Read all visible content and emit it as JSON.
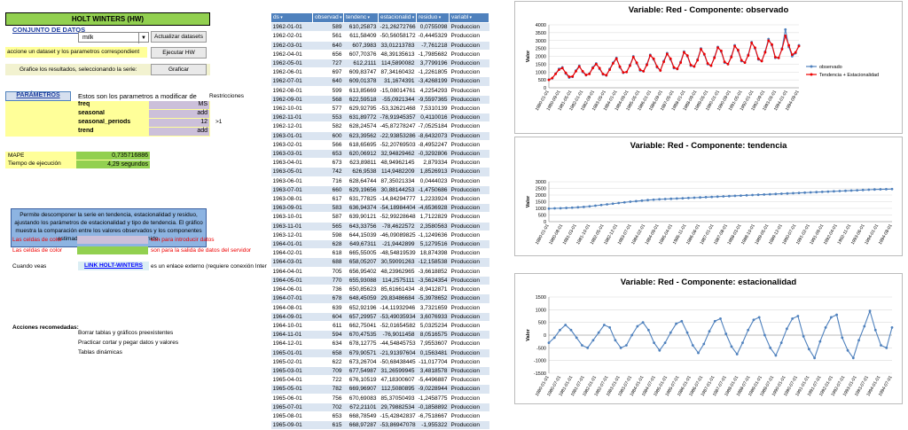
{
  "left": {
    "title": "HOLT WINTERS (HW)",
    "dataset_header": "CONJUNTO DE DATOS",
    "dataset_value": "milk",
    "update_btn": "Actualizar datasets",
    "select_instr": "accione un dataset y los parametros correspondient",
    "run_btn": "Ejecutar HW",
    "graph_instr": "Grafice los resultados, seleccionando la serie:",
    "graph_btn": "Graficar",
    "params_header": "PARÁMETROS",
    "params_desc": "Estos son los parametros a modificar de",
    "restrictions": "Restricciones",
    "params": [
      {
        "name": "freq",
        "value": "MS"
      },
      {
        "name": "seasonal",
        "value": "add"
      },
      {
        "name": "seasonal_periods",
        "value": "12"
      },
      {
        "name": "trend",
        "value": "add"
      }
    ],
    "restriction_note": ">1",
    "mape_label": "MAPE",
    "mape_value": "0,735716886",
    "time_label": "Tiempo de ejecución",
    "time_value": "4,29 segundos",
    "description": "Permite descomponer la serie en tendencia, estacionalidad y residuo, ajustando los parámetros de estacionalidad y tipo de tendencia. El gráfico muestra la comparación entre los valores observados y los componentes estimados, junto con el MAPE obtenido.",
    "color_cells_1": "Las celdas de color",
    "color_note_1": "son para introducir datos",
    "color_cells_2": "Las celdas de color",
    "color_note_2": "son para la salida de datos del servidor",
    "when_see": "Cuando veas",
    "link_text": "LINK HOLT-WINTERS",
    "link_note": "es un enlace externo (requiere conexión Inter",
    "actions_header": "Acciones recomedadas:",
    "actions": [
      "Borrar tablas y gráficos preexistentes",
      "Practicar cortar y pegar datos y valores",
      "Tablas dinámicas"
    ]
  },
  "table": {
    "headers": [
      "ds",
      "observad",
      "tendenc",
      "estacionalid",
      "residuo",
      "variabl"
    ],
    "rows": [
      [
        "1962-01-01",
        "589",
        "610,25873",
        "-21,26272766",
        "0,0755098",
        "Produccion"
      ],
      [
        "1962-02-01",
        "561",
        "611,58409",
        "-50,56058172",
        "-0,4445329",
        "Produccion"
      ],
      [
        "1962-03-01",
        "640",
        "607,3983",
        "33,01213783",
        "-7,761218",
        "Produccion"
      ],
      [
        "1962-04-01",
        "656",
        "607,70376",
        "48,39135613",
        "-1,7985682",
        "Produccion"
      ],
      [
        "1962-05-01",
        "727",
        "612,2111",
        "114,5890082",
        "3,7799196",
        "Produccion"
      ],
      [
        "1962-06-01",
        "697",
        "609,83747",
        "87,34160432",
        "-1,2261805",
        "Produccion"
      ],
      [
        "1962-07-01",
        "640",
        "609,01378",
        "31,1674391",
        "-3,4268199",
        "Produccion"
      ],
      [
        "1962-08-01",
        "599",
        "613,85669",
        "-15,08014761",
        "4,2254293",
        "Produccion"
      ],
      [
        "1962-09-01",
        "568",
        "622,59518",
        "-55,0921344",
        "-9,5597365",
        "Produccion"
      ],
      [
        "1962-10-01",
        "577",
        "629,92795",
        "-53,32621468",
        "7,5310139",
        "Produccion"
      ],
      [
        "1962-11-01",
        "553",
        "631,89772",
        "-78,91945357",
        "0,4110016",
        "Produccion"
      ],
      [
        "1962-12-01",
        "582",
        "628,24574",
        "-45,87278247",
        "-7,0525184",
        "Produccion"
      ],
      [
        "1963-01-01",
        "600",
        "623,39562",
        "-22,93853286",
        "-8,6432073",
        "Produccion"
      ],
      [
        "1963-02-01",
        "566",
        "618,65695",
        "-52,20769503",
        "-8,4952247",
        "Produccion"
      ],
      [
        "1963-03-01",
        "653",
        "620,06912",
        "32,94829462",
        "-0,3292806",
        "Produccion"
      ],
      [
        "1963-04-01",
        "673",
        "623,89811",
        "48,94962145",
        "2,879334",
        "Produccion"
      ],
      [
        "1963-05-01",
        "742",
        "626,9538",
        "114,9482209",
        "1,8526913",
        "Produccion"
      ],
      [
        "1963-06-01",
        "716",
        "628,64744",
        "87,35021334",
        "0,0444023",
        "Produccion"
      ],
      [
        "1963-07-01",
        "660",
        "629,19656",
        "30,88144253",
        "-1,4750686",
        "Produccion"
      ],
      [
        "1963-08-01",
        "617",
        "631,77825",
        "-14,84294777",
        "1,2233924",
        "Produccion"
      ],
      [
        "1963-09-01",
        "583",
        "636,94374",
        "-54,18984404",
        "-4,6536928",
        "Produccion"
      ],
      [
        "1963-10-01",
        "587",
        "639,90121",
        "-52,99228648",
        "1,7122829",
        "Produccion"
      ],
      [
        "1963-11-01",
        "565",
        "643,33756",
        "-78,4622572",
        "2,3580563",
        "Produccion"
      ],
      [
        "1963-12-01",
        "598",
        "644,15039",
        "-46,09089825",
        "-1,1249636",
        "Produccion"
      ],
      [
        "1964-01-01",
        "628",
        "649,67311",
        "-21,9442899",
        "5,1279516",
        "Produccion"
      ],
      [
        "1964-02-01",
        "618",
        "665,55005",
        "-48,54819539",
        "18,874398",
        "Produccion"
      ],
      [
        "1964-03-01",
        "688",
        "658,05207",
        "30,59091263",
        "-12,158538",
        "Produccion"
      ],
      [
        "1964-04-01",
        "705",
        "656,95402",
        "48,23962965",
        "-3,6618852",
        "Produccion"
      ],
      [
        "1964-05-01",
        "770",
        "655,93088",
        "114,2575111",
        "-3,5624354",
        "Produccion"
      ],
      [
        "1964-06-01",
        "736",
        "650,85623",
        "85,61661434",
        "-8,9412871",
        "Produccion"
      ],
      [
        "1964-07-01",
        "678",
        "648,45059",
        "29,83486684",
        "-5,3978652",
        "Produccion"
      ],
      [
        "1964-08-01",
        "639",
        "652,92196",
        "-14,11932946",
        "3,7321659",
        "Produccion"
      ],
      [
        "1964-09-01",
        "604",
        "657,29957",
        "-53,49035934",
        "3,6076933",
        "Produccion"
      ],
      [
        "1964-10-01",
        "611",
        "662,75041",
        "-52,01654582",
        "5,0325234",
        "Produccion"
      ],
      [
        "1964-11-01",
        "594",
        "670,47535",
        "-76,9011458",
        "8,0516575",
        "Produccion"
      ],
      [
        "1964-12-01",
        "634",
        "678,12775",
        "-44,54845753",
        "7,9553607",
        "Produccion"
      ],
      [
        "1965-01-01",
        "658",
        "679,90571",
        "-21,91397604",
        "0,1563481",
        "Produccion"
      ],
      [
        "1965-02-01",
        "622",
        "673,26704",
        "-50,68438445",
        "-11,017704",
        "Produccion"
      ],
      [
        "1965-03-01",
        "709",
        "677,54987",
        "31,26599945",
        "3,4818578",
        "Produccion"
      ],
      [
        "1965-04-01",
        "722",
        "676,10519",
        "47,18300607",
        "-5,4496887",
        "Produccion"
      ],
      [
        "1965-05-01",
        "782",
        "669,96907",
        "112,5080895",
        "-9,0228944",
        "Produccion"
      ],
      [
        "1965-06-01",
        "756",
        "670,69083",
        "85,37050493",
        "-1,2458775",
        "Produccion"
      ],
      [
        "1965-07-01",
        "702",
        "672,21101",
        "29,79882534",
        "-0,1858892",
        "Produccion"
      ],
      [
        "1965-08-01",
        "653",
        "668,78549",
        "-15,42842837",
        "-6,7518667",
        "Produccion"
      ],
      [
        "1965-09-01",
        "615",
        "668,97287",
        "-53,86947078",
        "-1,955322",
        "Produccion"
      ]
    ]
  },
  "chart_data": [
    {
      "type": "line",
      "title": "Variable: Red - Componente: observado",
      "ylabel": "Valor",
      "ylim": [
        0,
        4000
      ],
      "yticks": [
        "0",
        "500",
        "1000",
        "1500",
        "2000",
        "2500",
        "3000",
        "3500",
        "4000"
      ],
      "xticks": [
        "1980-01-01",
        "1980-09-01",
        "1981-05-01",
        "1982-01-01",
        "1982-09-01",
        "1983-05-01",
        "1984-01-01",
        "1984-09-01",
        "1985-05-01",
        "1986-01-01",
        "1986-09-01",
        "1987-05-01",
        "1988-01-01",
        "1988-09-01",
        "1989-05-01",
        "1990-01-01",
        "1990-09-01",
        "1991-05-01",
        "1992-01-01",
        "1992-09-01",
        "1993-05-01",
        "1994-01-01",
        "1994-09-01"
      ],
      "legend": "right",
      "series": [
        {
          "name": "observado",
          "color": "#4f81bd",
          "values": [
            520,
            600,
            900,
            1200,
            1300,
            900,
            650,
            700,
            1100,
            1400,
            1000,
            800,
            900,
            1300,
            1550,
            1200,
            850,
            780,
            1200,
            1600,
            1900,
            1300,
            950,
            1000,
            1450,
            2000,
            1550,
            1100,
            1050,
            1500,
            2100,
            1800,
            1300,
            1100,
            1700,
            2200,
            1800,
            1250,
            1200,
            1650,
            2300,
            2000,
            1400,
            1350,
            1800,
            2500,
            2100,
            1500,
            1400,
            1950,
            2600,
            2300,
            1600,
            1500,
            2000,
            2700,
            2350,
            1700,
            1600,
            2100,
            2900,
            2500,
            1800,
            1700,
            2300,
            3100,
            2700,
            1900,
            1900,
            2500,
            3700,
            2600,
            2000,
            2200,
            2700
          ]
        },
        {
          "name": "Tendencia + Estacionalidad",
          "color": "#e00",
          "values": [
            500,
            620,
            880,
            1150,
            1250,
            950,
            700,
            720,
            1050,
            1350,
            1050,
            820,
            880,
            1250,
            1500,
            1250,
            880,
            800,
            1150,
            1550,
            1850,
            1350,
            980,
            1000,
            1400,
            1950,
            1600,
            1150,
            1050,
            1450,
            2050,
            1850,
            1350,
            1100,
            1650,
            2150,
            1850,
            1300,
            1200,
            1600,
            2250,
            2050,
            1450,
            1350,
            1750,
            2450,
            2150,
            1550,
            1400,
            1900,
            2550,
            2350,
            1650,
            1500,
            1950,
            2650,
            2400,
            1750,
            1600,
            2050,
            2850,
            2550,
            1850,
            1700,
            2250,
            3000,
            2750,
            1950,
            1900,
            2450,
            3300,
            2700,
            2100,
            2250,
            2650
          ]
        }
      ]
    },
    {
      "type": "line",
      "title": "Variable: Red - Componente: tendencia",
      "ylabel": "Valor",
      "ylim": [
        0,
        3000
      ],
      "yticks": [
        "0",
        "500",
        "1000",
        "1500",
        "2000",
        "2500",
        "3000"
      ],
      "xticks": [
        "1980-01-01",
        "1980-08-01",
        "1981-03-01",
        "1981-10-01",
        "1982-05-01",
        "1982-12-01",
        "1983-07-01",
        "1984-02-01",
        "1984-09-01",
        "1985-04-01",
        "1985-11-01",
        "1986-06-01",
        "1987-01-01",
        "1987-08-01",
        "1988-03-01",
        "1988-10-01",
        "1989-05-01",
        "1989-12-01",
        "1990-07-01",
        "1991-02-01",
        "1991-09-01",
        "1992-04-01",
        "1992-11-01",
        "1993-06-01",
        "1994-01-01",
        "1994-08-01"
      ],
      "series": [
        {
          "name": "tendencia",
          "color": "#4f81bd",
          "values": [
            980,
            1000,
            1010,
            1030,
            1050,
            1080,
            1110,
            1150,
            1200,
            1250,
            1300,
            1350,
            1400,
            1450,
            1500,
            1540,
            1580,
            1620,
            1650,
            1680,
            1700,
            1720,
            1740,
            1760,
            1780,
            1800,
            1820,
            1840,
            1860,
            1880,
            1900,
            1920,
            1940,
            1960,
            1980,
            2000,
            2020,
            2040,
            2060,
            2080,
            2100,
            2120,
            2140,
            2160,
            2180,
            2200,
            2220,
            2240,
            2260,
            2280,
            2300,
            2320,
            2340,
            2360,
            2380,
            2400,
            2420,
            2430,
            2440,
            2450
          ]
        }
      ]
    },
    {
      "type": "line",
      "title": "Variable: Red - Componente: estacionalidad",
      "ylabel": "Valor",
      "ylim": [
        -1500,
        1500
      ],
      "yticks": [
        "-1500",
        "-1000",
        "-500",
        "0",
        "500",
        "1000",
        "1500"
      ],
      "xticks": [
        "1980-01-01",
        "1980-07-01",
        "1981-01-01",
        "1981-07-01",
        "1982-01-01",
        "1982-07-01",
        "1983-01-01",
        "1983-07-01",
        "1984-01-01",
        "1984-07-01",
        "1985-01-01",
        "1985-07-01",
        "1986-01-01",
        "1986-07-01",
        "1987-01-01",
        "1987-07-01",
        "1988-01-01",
        "1988-07-01",
        "1989-01-01",
        "1989-07-01",
        "1990-01-01",
        "1990-07-01",
        "1991-01-01",
        "1991-07-01",
        "1992-01-01",
        "1992-07-01",
        "1993-01-01",
        "1993-07-01",
        "1994-01-01",
        "1994-07-01"
      ],
      "series": [
        {
          "name": "estacionalidad",
          "color": "#4f81bd",
          "values": [
            -300,
            -100,
            200,
            400,
            200,
            -100,
            -400,
            -500,
            -200,
            100,
            400,
            300,
            -200,
            -500,
            -400,
            0,
            350,
            500,
            200,
            -300,
            -600,
            -300,
            100,
            450,
            550,
            100,
            -400,
            -700,
            -350,
            150,
            550,
            650,
            50,
            -450,
            -750,
            -300,
            200,
            600,
            700,
            0,
            -500,
            -800,
            -300,
            250,
            650,
            750,
            -50,
            -550,
            -900,
            -250,
            300,
            700,
            800,
            -100,
            -600,
            -900,
            -200,
            350,
            950,
            200,
            -400,
            -500,
            300
          ]
        }
      ]
    }
  ]
}
